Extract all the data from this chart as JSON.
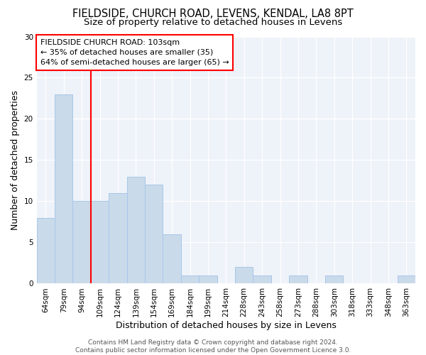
{
  "title1": "FIELDSIDE, CHURCH ROAD, LEVENS, KENDAL, LA8 8PT",
  "title2": "Size of property relative to detached houses in Levens",
  "xlabel": "Distribution of detached houses by size in Levens",
  "ylabel": "Number of detached properties",
  "bar_labels": [
    "64sqm",
    "79sqm",
    "94sqm",
    "109sqm",
    "124sqm",
    "139sqm",
    "154sqm",
    "169sqm",
    "184sqm",
    "199sqm",
    "214sqm",
    "228sqm",
    "243sqm",
    "258sqm",
    "273sqm",
    "288sqm",
    "303sqm",
    "318sqm",
    "333sqm",
    "348sqm",
    "363sqm"
  ],
  "bar_values": [
    8,
    23,
    10,
    10,
    11,
    13,
    12,
    6,
    1,
    1,
    0,
    2,
    1,
    0,
    1,
    0,
    1,
    0,
    0,
    0,
    1
  ],
  "bar_color": "#c9daea",
  "bar_edge_color": "#a8c8e8",
  "annotation_line1": "FIELDSIDE CHURCH ROAD: 103sqm",
  "annotation_line2": "← 35% of detached houses are smaller (35)",
  "annotation_line3": "64% of semi-detached houses are larger (65) →",
  "red_line_x": 2.5,
  "footer_text": "Contains HM Land Registry data © Crown copyright and database right 2024.\nContains public sector information licensed under the Open Government Licence 3.0.",
  "ylim": [
    0,
    30
  ],
  "yticks": [
    0,
    5,
    10,
    15,
    20,
    25,
    30
  ],
  "background_color": "#eef2f9",
  "title1_fontsize": 10.5,
  "title2_fontsize": 9.5,
  "axis_label_fontsize": 9,
  "tick_fontsize": 7.5,
  "annot_fontsize": 8,
  "footer_fontsize": 6.5
}
